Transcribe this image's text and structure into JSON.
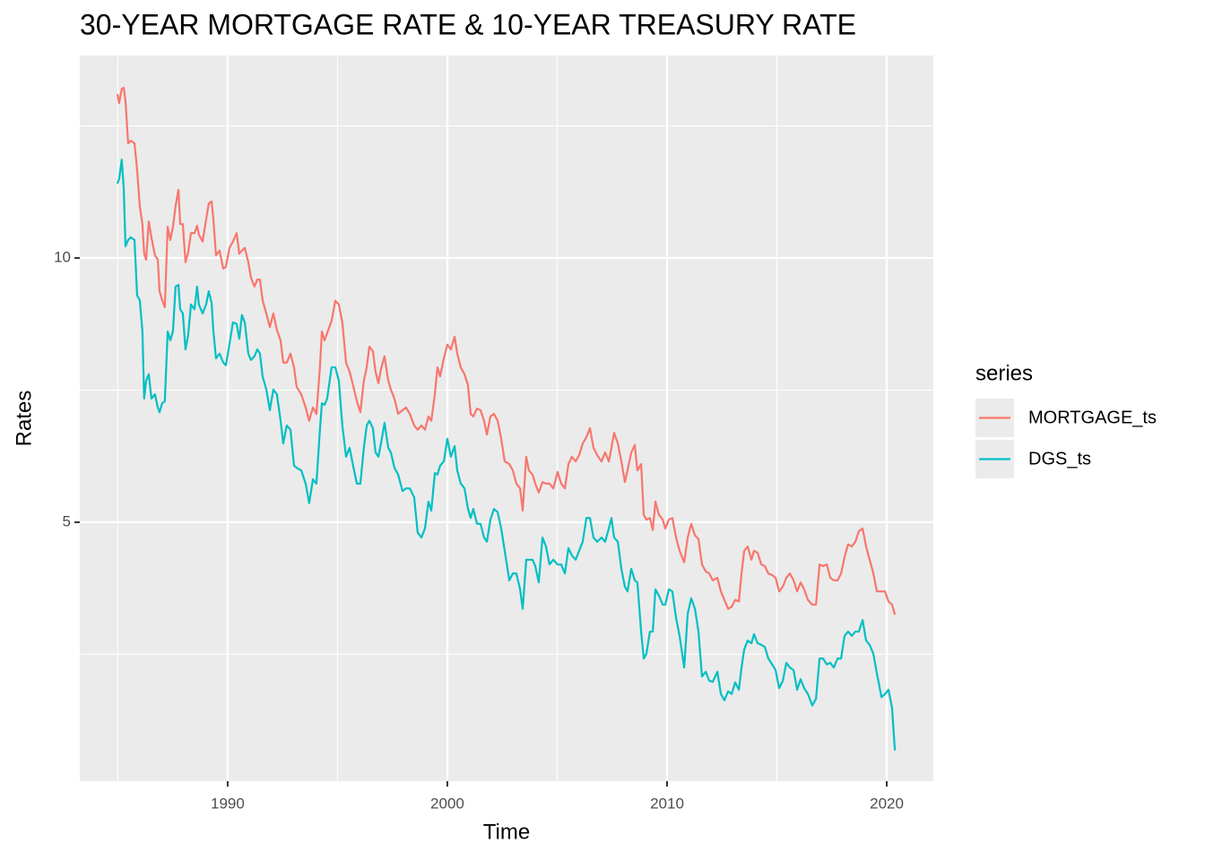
{
  "chart_data": {
    "type": "line",
    "title": "30-YEAR MORTGAGE RATE & 10-YEAR TREASURY RATE",
    "x_label": "Time",
    "y_label": "Rates",
    "legend_title": "series",
    "legend_position": "right",
    "grid": true,
    "xlim": [
      1983.27,
      2022.12
    ],
    "xticks": [
      1990,
      2000,
      2010,
      2020
    ],
    "x_minor_ticks": [
      1985,
      1995,
      2005,
      2015
    ],
    "ylim": [
      0.1,
      13.83
    ],
    "yticks": [
      5,
      10
    ],
    "y_minor_ticks": [
      2.5,
      7.5,
      12.5
    ],
    "x": [
      1984.98,
      1985.06,
      1985.18,
      1985.27,
      1985.35,
      1985.47,
      1985.59,
      1985.76,
      1985.88,
      1986.0,
      1986.12,
      1986.2,
      1986.29,
      1986.41,
      1986.53,
      1986.69,
      1986.82,
      1986.9,
      1987.02,
      1987.14,
      1987.27,
      1987.39,
      1987.51,
      1987.63,
      1987.76,
      1987.84,
      1987.96,
      1988.08,
      1988.2,
      1988.33,
      1988.49,
      1988.61,
      1988.69,
      1988.86,
      1989.02,
      1989.14,
      1989.27,
      1989.35,
      1989.47,
      1989.63,
      1989.8,
      1989.92,
      1990.08,
      1990.24,
      1990.41,
      1990.53,
      1990.65,
      1990.78,
      1990.94,
      1991.06,
      1991.22,
      1991.35,
      1991.47,
      1991.59,
      1991.76,
      1991.92,
      1992.08,
      1992.24,
      1992.41,
      1992.53,
      1992.69,
      1992.86,
      1993.02,
      1993.14,
      1993.35,
      1993.55,
      1993.71,
      1993.88,
      1994.04,
      1994.2,
      1994.29,
      1994.41,
      1994.53,
      1994.73,
      1994.9,
      1995.06,
      1995.22,
      1995.39,
      1995.55,
      1995.71,
      1995.88,
      1996.04,
      1996.2,
      1996.33,
      1996.45,
      1996.61,
      1996.73,
      1996.86,
      1996.98,
      1997.14,
      1997.31,
      1997.43,
      1997.59,
      1997.76,
      1997.96,
      1998.12,
      1998.29,
      1998.49,
      1998.65,
      1998.82,
      1998.98,
      1999.14,
      1999.27,
      1999.43,
      1999.55,
      1999.67,
      1999.84,
      2000.0,
      2000.16,
      2000.33,
      2000.45,
      2000.61,
      2000.78,
      2000.94,
      2001.06,
      2001.18,
      2001.35,
      2001.51,
      2001.67,
      2001.8,
      2001.96,
      2002.12,
      2002.29,
      2002.45,
      2002.61,
      2002.82,
      2002.98,
      2003.14,
      2003.31,
      2003.43,
      2003.59,
      2003.71,
      2003.88,
      2004.0,
      2004.16,
      2004.33,
      2004.49,
      2004.65,
      2004.82,
      2005.02,
      2005.18,
      2005.35,
      2005.51,
      2005.67,
      2005.84,
      2006.0,
      2006.16,
      2006.33,
      2006.49,
      2006.65,
      2006.82,
      2007.02,
      2007.18,
      2007.35,
      2007.47,
      2007.59,
      2007.76,
      2007.92,
      2008.08,
      2008.2,
      2008.37,
      2008.53,
      2008.65,
      2008.82,
      2008.94,
      2009.06,
      2009.22,
      2009.35,
      2009.47,
      2009.63,
      2009.8,
      2009.92,
      2010.08,
      2010.24,
      2010.41,
      2010.57,
      2010.78,
      2010.94,
      2011.1,
      2011.27,
      2011.43,
      2011.59,
      2011.76,
      2011.92,
      2012.08,
      2012.29,
      2012.45,
      2012.61,
      2012.78,
      2012.94,
      2013.1,
      2013.27,
      2013.39,
      2013.51,
      2013.67,
      2013.84,
      2013.96,
      2014.12,
      2014.29,
      2014.45,
      2014.61,
      2014.78,
      2014.94,
      2015.1,
      2015.27,
      2015.43,
      2015.59,
      2015.76,
      2015.92,
      2016.08,
      2016.24,
      2016.41,
      2016.61,
      2016.78,
      2016.94,
      2017.1,
      2017.27,
      2017.43,
      2017.59,
      2017.76,
      2017.92,
      2018.08,
      2018.24,
      2018.41,
      2018.57,
      2018.73,
      2018.9,
      2019.06,
      2019.22,
      2019.39,
      2019.55,
      2019.76,
      2019.92,
      2020.08,
      2020.24,
      2020.37
    ],
    "series": [
      {
        "name": "MORTGAGE_ts",
        "color": "#F8766D",
        "values": [
          13.1,
          12.93,
          13.2,
          13.22,
          12.97,
          12.17,
          12.22,
          12.17,
          11.66,
          10.98,
          10.64,
          10.08,
          9.97,
          10.69,
          10.39,
          10.05,
          9.97,
          9.37,
          9.2,
          9.07,
          10.59,
          10.34,
          10.59,
          10.98,
          11.29,
          10.64,
          10.64,
          9.92,
          10.1,
          10.47,
          10.47,
          10.61,
          10.44,
          10.31,
          10.73,
          11.03,
          11.07,
          10.73,
          10.05,
          10.14,
          9.8,
          9.83,
          10.19,
          10.31,
          10.47,
          10.08,
          10.14,
          10.19,
          9.92,
          9.63,
          9.46,
          9.59,
          9.59,
          9.2,
          8.95,
          8.69,
          8.95,
          8.64,
          8.44,
          8.02,
          8.02,
          8.19,
          7.93,
          7.56,
          7.42,
          7.17,
          6.92,
          7.17,
          7.05,
          7.93,
          8.61,
          8.44,
          8.58,
          8.81,
          9.19,
          9.12,
          8.78,
          8.02,
          7.85,
          7.59,
          7.29,
          7.08,
          7.68,
          7.93,
          8.32,
          8.24,
          7.85,
          7.63,
          7.9,
          8.14,
          7.68,
          7.51,
          7.34,
          7.05,
          7.12,
          7.17,
          7.05,
          6.83,
          6.75,
          6.83,
          6.75,
          7.0,
          6.92,
          7.42,
          7.93,
          7.76,
          8.1,
          8.36,
          8.27,
          8.51,
          8.19,
          7.93,
          7.8,
          7.59,
          7.05,
          7.0,
          7.15,
          7.12,
          6.92,
          6.66,
          7.0,
          7.05,
          6.92,
          6.58,
          6.15,
          6.1,
          5.98,
          5.73,
          5.64,
          5.22,
          6.24,
          5.98,
          5.9,
          5.73,
          5.56,
          5.76,
          5.73,
          5.73,
          5.64,
          5.95,
          5.73,
          5.64,
          6.1,
          6.24,
          6.15,
          6.27,
          6.49,
          6.61,
          6.78,
          6.41,
          6.27,
          6.15,
          6.32,
          6.15,
          6.41,
          6.69,
          6.49,
          6.15,
          5.76,
          5.98,
          6.32,
          6.46,
          5.98,
          6.1,
          5.14,
          5.05,
          5.08,
          4.85,
          5.39,
          5.14,
          5.05,
          4.88,
          5.05,
          5.08,
          4.71,
          4.46,
          4.24,
          4.71,
          4.97,
          4.75,
          4.68,
          4.2,
          4.07,
          4.03,
          3.9,
          3.95,
          3.69,
          3.53,
          3.36,
          3.4,
          3.53,
          3.5,
          4.03,
          4.46,
          4.54,
          4.29,
          4.46,
          4.42,
          4.2,
          4.17,
          4.03,
          4.0,
          3.95,
          3.69,
          3.78,
          3.95,
          4.03,
          3.9,
          3.69,
          3.86,
          3.73,
          3.53,
          3.44,
          3.44,
          4.2,
          4.17,
          4.2,
          3.95,
          3.9,
          3.9,
          4.03,
          4.34,
          4.58,
          4.54,
          4.63,
          4.83,
          4.88,
          4.54,
          4.29,
          4.03,
          3.69,
          3.69,
          3.69,
          3.5,
          3.44,
          3.25
        ]
      },
      {
        "name": "DGS_ts",
        "color": "#00BFC4",
        "values": [
          11.41,
          11.49,
          11.86,
          11.32,
          10.22,
          10.34,
          10.39,
          10.34,
          9.29,
          9.2,
          8.61,
          7.34,
          7.68,
          7.8,
          7.34,
          7.42,
          7.17,
          7.08,
          7.25,
          7.29,
          8.61,
          8.44,
          8.61,
          9.46,
          9.49,
          9.03,
          8.95,
          8.27,
          8.53,
          9.12,
          9.03,
          9.46,
          9.12,
          8.95,
          9.12,
          9.37,
          9.15,
          8.61,
          8.1,
          8.19,
          8.02,
          7.97,
          8.36,
          8.78,
          8.75,
          8.47,
          8.92,
          8.78,
          8.19,
          8.07,
          8.14,
          8.27,
          8.19,
          7.76,
          7.51,
          7.12,
          7.51,
          7.42,
          6.92,
          6.49,
          6.83,
          6.75,
          6.07,
          6.03,
          5.98,
          5.73,
          5.36,
          5.81,
          5.73,
          6.75,
          7.25,
          7.22,
          7.34,
          7.93,
          7.93,
          7.68,
          6.83,
          6.24,
          6.41,
          6.07,
          5.73,
          5.73,
          6.41,
          6.83,
          6.92,
          6.78,
          6.32,
          6.24,
          6.49,
          6.88,
          6.41,
          6.32,
          6.03,
          5.9,
          5.59,
          5.64,
          5.64,
          5.47,
          4.8,
          4.71,
          4.88,
          5.39,
          5.22,
          5.93,
          5.9,
          6.07,
          6.15,
          6.58,
          6.24,
          6.44,
          5.98,
          5.73,
          5.64,
          5.25,
          5.08,
          5.25,
          4.97,
          4.97,
          4.71,
          4.63,
          5.05,
          5.25,
          5.19,
          4.88,
          4.46,
          3.9,
          4.03,
          4.03,
          3.73,
          3.36,
          4.29,
          4.29,
          4.29,
          4.17,
          3.86,
          4.71,
          4.54,
          4.2,
          4.29,
          4.2,
          4.2,
          4.03,
          4.51,
          4.37,
          4.29,
          4.46,
          4.63,
          5.08,
          5.08,
          4.71,
          4.63,
          4.71,
          4.63,
          4.88,
          5.08,
          4.71,
          4.63,
          4.12,
          3.78,
          3.69,
          4.12,
          3.9,
          3.86,
          2.93,
          2.42,
          2.51,
          2.93,
          2.93,
          3.73,
          3.61,
          3.44,
          3.44,
          3.73,
          3.69,
          3.19,
          2.85,
          2.25,
          3.27,
          3.56,
          3.36,
          2.93,
          2.08,
          2.17,
          2.0,
          1.98,
          2.17,
          1.75,
          1.63,
          1.8,
          1.75,
          1.97,
          1.83,
          2.25,
          2.59,
          2.76,
          2.71,
          2.88,
          2.71,
          2.68,
          2.64,
          2.42,
          2.31,
          2.2,
          1.86,
          2.0,
          2.34,
          2.25,
          2.2,
          1.83,
          2.03,
          1.86,
          1.75,
          1.53,
          1.66,
          2.42,
          2.42,
          2.31,
          2.34,
          2.25,
          2.42,
          2.42,
          2.85,
          2.93,
          2.85,
          2.93,
          2.93,
          3.15,
          2.76,
          2.68,
          2.51,
          2.14,
          1.69,
          1.75,
          1.83,
          1.49,
          0.68
        ]
      }
    ]
  }
}
